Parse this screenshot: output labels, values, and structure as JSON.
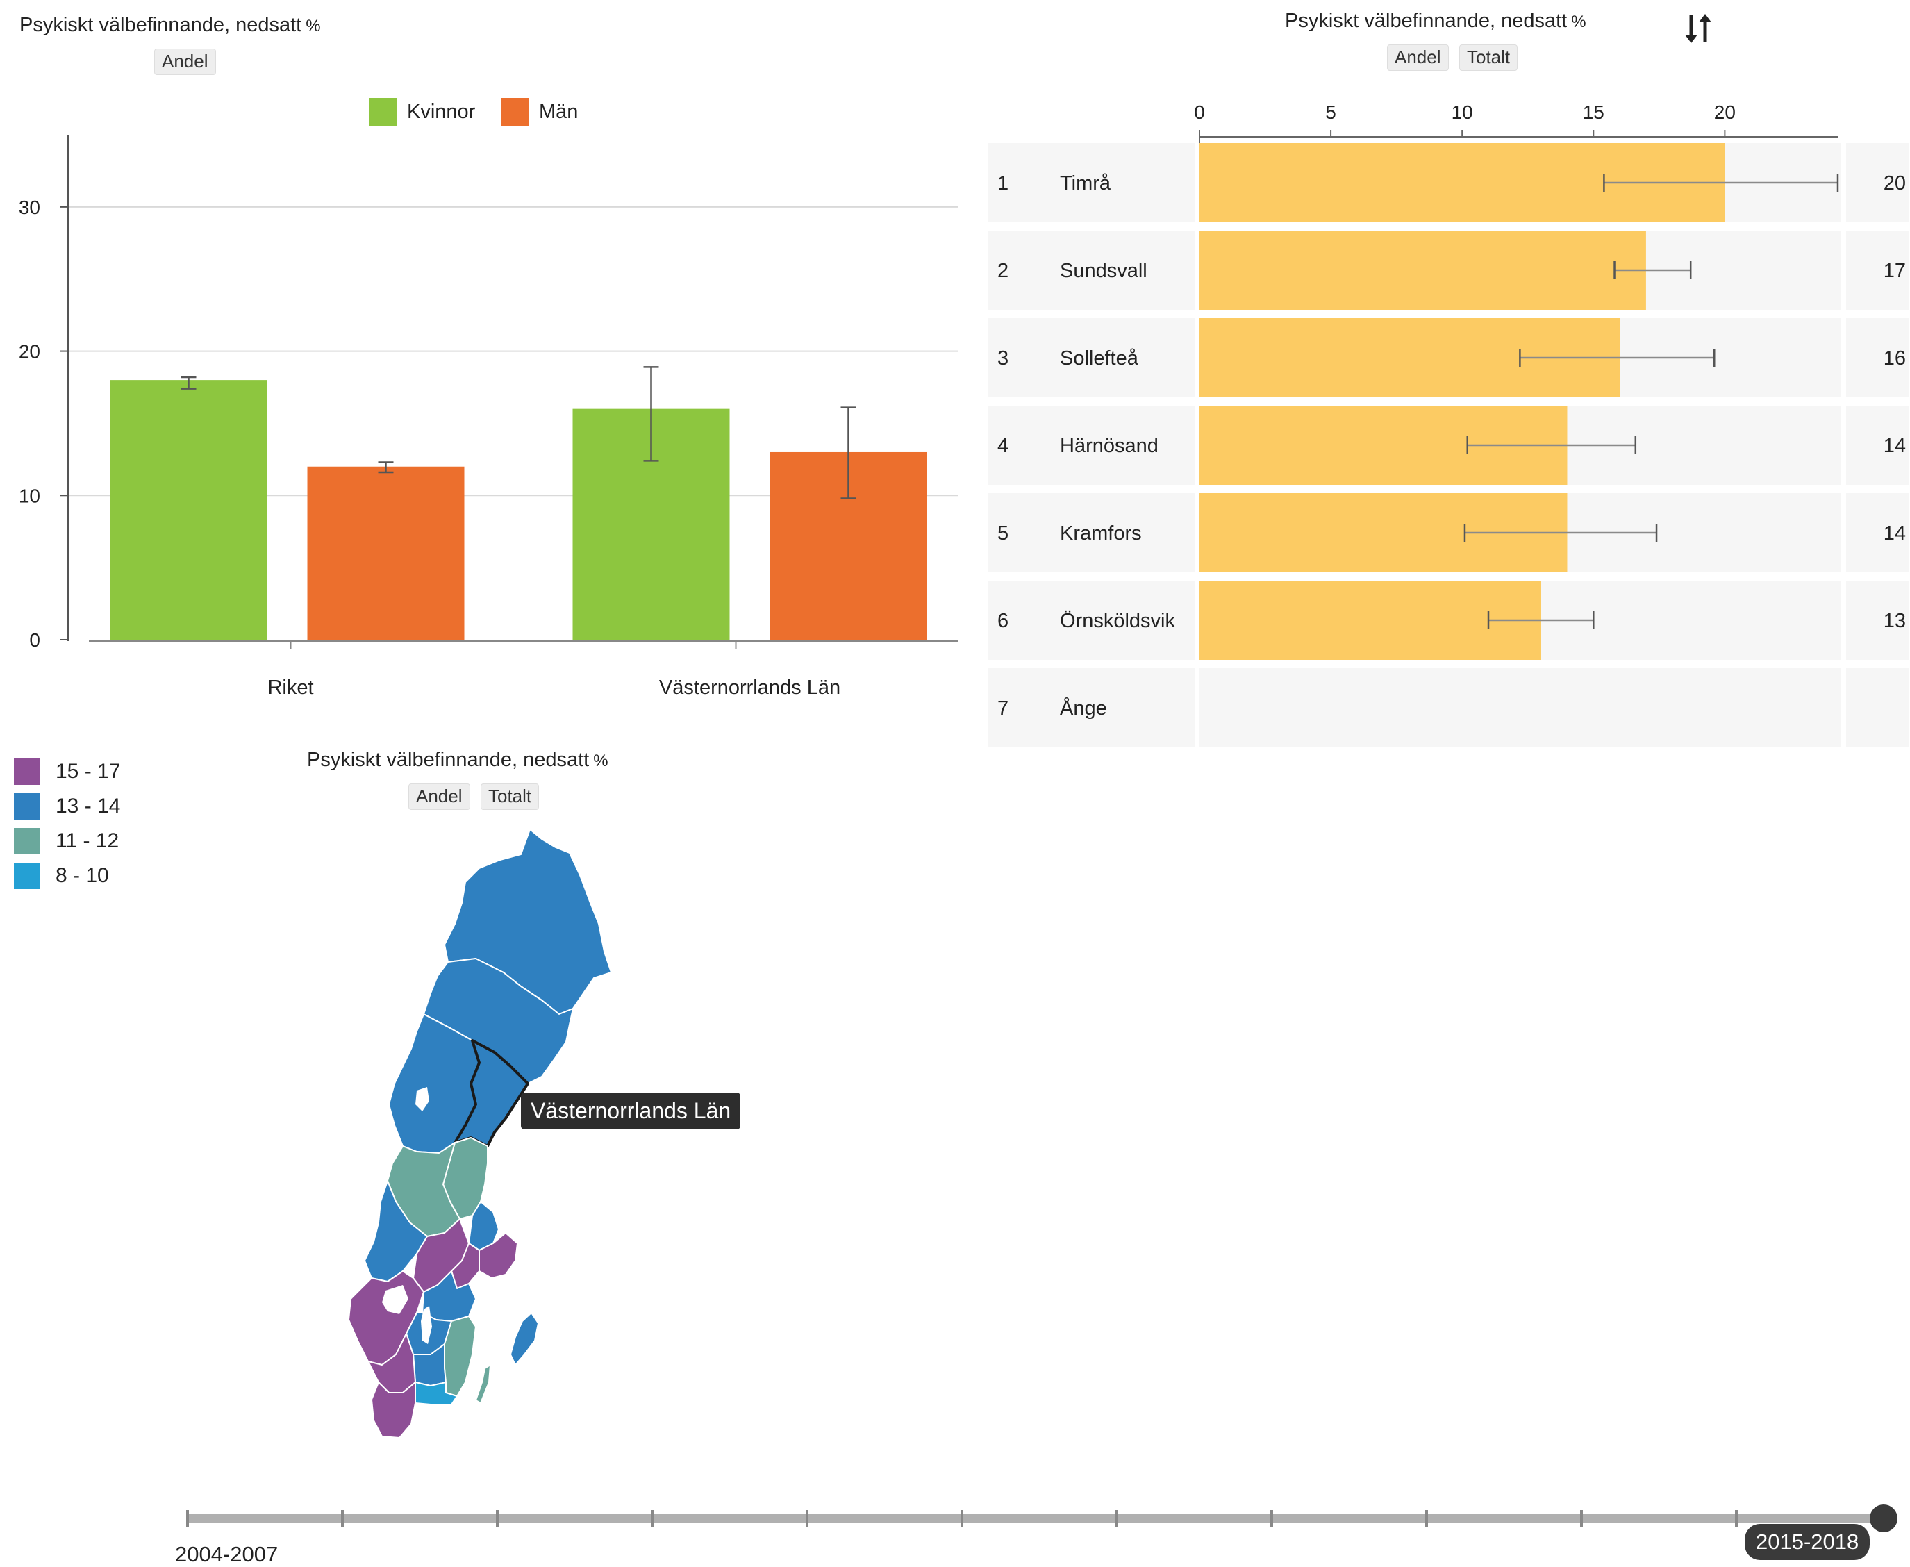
{
  "left_chart": {
    "title": "Psykiskt välbefinnande, nedsatt",
    "unit": "%",
    "chips": [
      "Andel"
    ]
  },
  "right_chart": {
    "title": "Psykiskt välbefinnande, nedsatt",
    "unit": "%",
    "chips": [
      "Andel",
      "Totalt"
    ],
    "sort_icon": "sort-arrows-icon"
  },
  "map": {
    "title": "Psykiskt välbefinnande, nedsatt",
    "unit": "%",
    "chips": [
      "Andel",
      "Totalt"
    ],
    "legend": [
      {
        "label": "15 - 17",
        "color": "#8e4f96"
      },
      {
        "label": "13 - 14",
        "color": "#2f80c0"
      },
      {
        "label": "11 - 12",
        "color": "#6aa89c"
      },
      {
        "label": "8 - 10",
        "color": "#24a0d4"
      }
    ],
    "highlighted_region": "Västernorrlands Län",
    "tooltip": "Västernorrlands Län"
  },
  "timeline": {
    "start_label": "2004-2007",
    "end_label": "2015-2018",
    "selected": "2015-2018"
  },
  "chart_data": [
    {
      "type": "bar",
      "categories": [
        "Riket",
        "Västernorrlands Län"
      ],
      "series": [
        {
          "name": "Kvinnor",
          "color": "#8dc63f",
          "values": [
            18,
            16
          ],
          "error_low": [
            17.4,
            12.4
          ],
          "error_high": [
            18.2,
            18.9
          ]
        },
        {
          "name": "Män",
          "color": "#ec6f2d",
          "values": [
            12,
            13
          ],
          "error_low": [
            11.6,
            9.8
          ],
          "error_high": [
            12.3,
            16.1
          ]
        }
      ],
      "ylim": [
        0,
        35
      ],
      "yticks": [
        0,
        10,
        20,
        30
      ],
      "grid": true,
      "legend": "top-center"
    },
    {
      "type": "bar",
      "orientation": "horizontal",
      "ranks": [
        "1",
        "2",
        "3",
        "4",
        "5",
        "6",
        "7"
      ],
      "categories": [
        "Timrå",
        "Sundsvall",
        "Sollefteå",
        "Härnösand",
        "Kramfors",
        "Örnsköldsvik",
        "Ånge"
      ],
      "values": [
        20,
        17,
        16,
        14,
        14,
        13,
        null
      ],
      "value_labels": [
        "20",
        "17",
        "16",
        "14",
        "14",
        "13",
        ""
      ],
      "error_low": [
        15.4,
        15.8,
        12.2,
        10.2,
        10.1,
        11.0,
        null
      ],
      "error_high": [
        24.3,
        18.7,
        19.6,
        16.6,
        17.4,
        15.0,
        null
      ],
      "bar_color": "#fccb63",
      "xlim": [
        0,
        24.3
      ],
      "xticks": [
        0,
        5,
        10,
        15,
        20
      ],
      "axis_position": "top"
    }
  ]
}
